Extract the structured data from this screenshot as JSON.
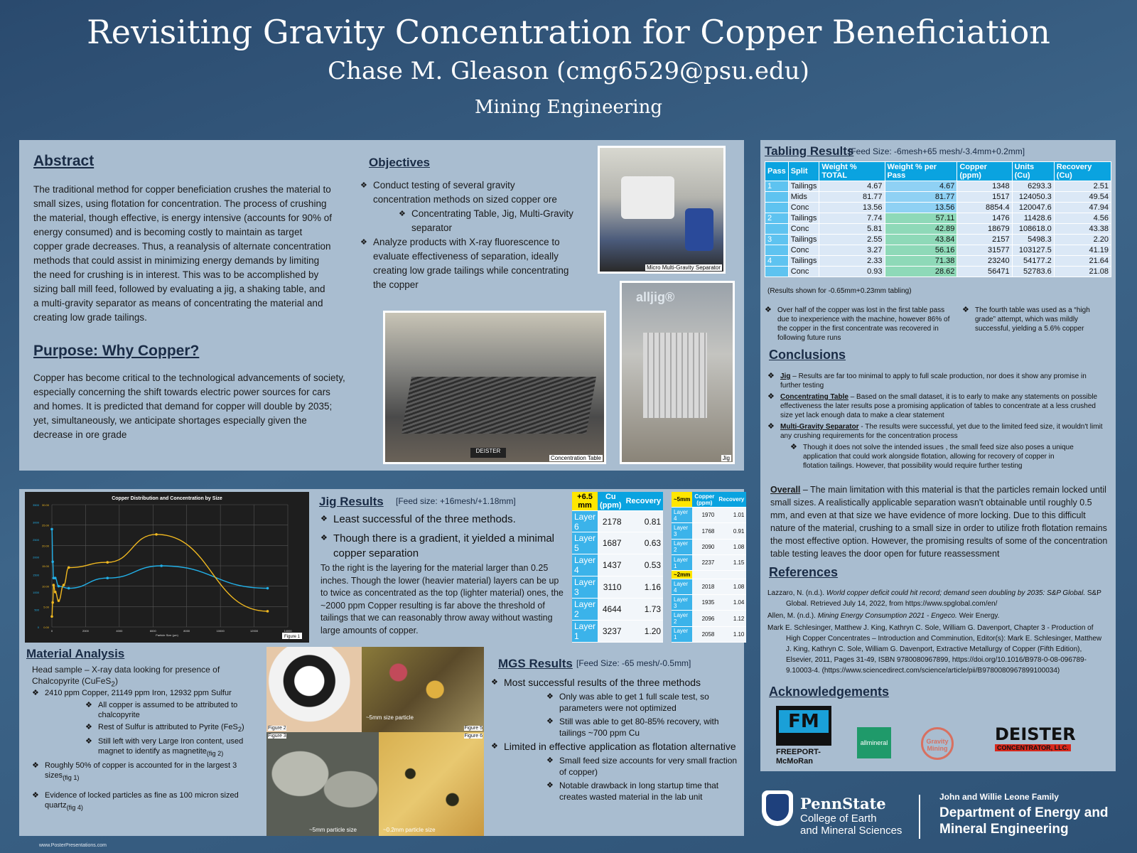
{
  "header": {
    "title": "Revisiting Gravity Concentration for Copper Beneficiation",
    "author": "Chase M. Gleason (cmg6529@psu.edu)",
    "dept": "Mining Engineering"
  },
  "abstract": {
    "heading": "Abstract",
    "text": "The traditional method for copper beneficiation crushes the material to small sizes, using flotation for concentration. The process of crushing the material, though effective, is energy intensive (accounts for 90% of energy consumed) and is becoming costly to maintain as target copper grade decreases. Thus, a reanalysis of alternate concentration methods that could assist in minimizing energy demands by limiting the need for crushing is in interest. This was to be accomplished by sizing ball mill feed, followed by evaluating a jig, a shaking table, and a multi-gravity separator as means of concentrating the material and creating low grade tailings."
  },
  "purpose": {
    "heading": "Purpose: Why Copper?",
    "text": "Copper has become critical to the technological advancements of society, especially concerning the shift towards electric power sources for cars and homes. It is predicted that demand for copper will double by 2035; yet, simultaneously, we anticipate shortages especially given the decrease in ore grade"
  },
  "objectives": {
    "heading": "Objectives",
    "i1": "Conduct testing of several gravity concentration methods on sized copper ore",
    "i1a": "Concentrating Table, Jig, Multi-Gravity separator",
    "i2": "Analyze products with X-ray fluorescence to evaluate effectiveness of separation, ideally creating low grade tailings while concentrating the copper"
  },
  "photos": {
    "mgs": "Micro Multi-Gravity Separator",
    "table": "Concentration Table",
    "jig": "Jig",
    "fig2": "Figure 2",
    "fig3": "Figure 3",
    "fig5": "Figure 5",
    "fig6": "Figure 6",
    "p5": "~5mm size particle",
    "p3": "~5mm particle size",
    "p6": "~0.2mm particle size",
    "deister": "DEISTER",
    "alljig": "alljig®"
  },
  "tabling": {
    "heading": "Tabling Results",
    "feed": "[Feed Size: -6mesh+65 mesh/-3.4mm+0.2mm]",
    "columns": [
      "Pass",
      "Split",
      "Weight % TOTAL",
      "Weight % per Pass",
      "Copper (ppm)",
      "Units (Cu)",
      "Recovery (Cu)"
    ],
    "rows": [
      [
        "1",
        "Tailings",
        "4.67",
        "4.67",
        "1348",
        "6293.3",
        "2.51"
      ],
      [
        "",
        "Mids",
        "81.77",
        "81.77",
        "1517",
        "124050.3",
        "49.54"
      ],
      [
        "",
        "Conc",
        "13.56",
        "13.56",
        "8854.4",
        "120047.6",
        "47.94"
      ],
      [
        "2",
        "Tailings",
        "7.74",
        "57.11",
        "1476",
        "11428.6",
        "4.56"
      ],
      [
        "",
        "Conc",
        "5.81",
        "42.89",
        "18679",
        "108618.0",
        "43.38"
      ],
      [
        "3",
        "Tailings",
        "2.55",
        "43.84",
        "2157",
        "5498.3",
        "2.20"
      ],
      [
        "",
        "Conc",
        "3.27",
        "56.16",
        "31577",
        "103127.5",
        "41.19"
      ],
      [
        "4",
        "Tailings",
        "2.33",
        "71.38",
        "23240",
        "54177.2",
        "21.64"
      ],
      [
        "",
        "Conc",
        "0.93",
        "28.62",
        "56471",
        "52783.6",
        "21.08"
      ]
    ],
    "note": "(Results shown for -0.65mm+0.23mm tabling)",
    "b1": "Over half of the copper was lost in the first table pass due to inexperience with the machine, however 86% of the copper in the first concentrate was recovered in following future runs",
    "b2": "The fourth table was used as a “high grade” attempt, which was mildly successful, yielding a 5.6% copper"
  },
  "conclusions": {
    "heading": "Conclusions",
    "jigL": "Jig",
    "jig": " – Results are far too minimal to apply to full scale production, nor does it show any promise in further testing",
    "ctL": "Concentrating Table",
    "ct": " – Based on the small dataset, it is to early to make any statements on possible effectiveness the later results pose a promising application of tables to concentrate at a less crushed size yet lack enough data to make a clear statement",
    "mgsL": "Multi-Gravity Separator",
    "mgs": " - The results were successful, yet due to the limited feed size, it wouldn't limit any crushing requirements for the concentration process",
    "sub": "Though it does not solve the intended issues , the small feed size also poses a unique application that could work alongside flotation, allowing for recovery of copper in flotation tailings. However, that possibility would require further testing",
    "overallL": "Overall",
    "overall": " – The main limitation with this material is that the particles remain locked until small sizes. A realistically applicable separation wasn't obtainable until roughly 0.5 mm, and even at that size we have evidence of more locking. Due to this difficult nature of the material, crushing to a small size in order to utilize froth flotation remains the most effective option. However, the promising results of some of the concentration table testing leaves the door open for future reassessment"
  },
  "references": {
    "heading": "References",
    "r1a": "Lazzaro, N. (n.d.). ",
    "r1i": "World copper deficit could hit record; demand seen doubling by 2035: S&P Global.",
    "r1b": " S&P Global. Retrieved July 14, 2022, from https://www.spglobal.com/en/",
    "r2a": "Allen, M. (n.d.). ",
    "r2i": "Mining Energy Consumption 2021 - Engeco.",
    "r2b": " Weir Energy.",
    "r3": "Mark E. Schlesinger, Matthew J. King, Kathryn C. Sole, William G. Davenport, Chapter 3 - Production of High Copper Concentrates – Introduction and Comminution, Editor(s): Mark E. Schlesinger, Matthew J. King, Kathryn C. Sole, William G. Davenport, Extractive Metallurgy of Copper (Fifth Edition), Elsevier, 2011, Pages 31-49, ISBN 9780080967899, https://doi.org/10.1016/B978-0-08-096789-9.10003-4. (https://www.sciencedirect.com/science/article/pii/B9780080967899100034)"
  },
  "ack": {
    "heading": "Acknowledgements",
    "fm1": "FREEPORT-",
    "fm2": "McMoRan",
    "allmineral": "allmineral",
    "gravity": "Gravity Mining",
    "deister": "DEISTER",
    "deister2": "CONCENTRATOR, LLC."
  },
  "psu": {
    "name": "PennState",
    "college1": "College of Earth",
    "college2": "and Mineral Sciences",
    "fam": "John and Willie Leone Family",
    "dept1": "Department of Energy and",
    "dept2": "Mineral Engineering"
  },
  "jig": {
    "heading": "Jig Results",
    "feed": "[Feed size: +16mesh/+1.18mm]",
    "b1": "Least successful of the three methods.",
    "b2": "Though there is a gradient, it yielded a minimal copper separation",
    "text": "To the right is the layering for the material larger than 0.25 inches. Though the lower (heavier material) layers can be up to twice as concentrated as the top (lighter material) ones, the ~2000 ppm Copper resulting is far above the threshold of tailings that we can reasonably throw away without wasting large amounts of copper.",
    "t1head": [
      "+6.5 mm",
      "Cu (ppm)",
      "Recovery"
    ],
    "t1": [
      [
        "Layer 6",
        "2178",
        "0.81"
      ],
      [
        "Layer 5",
        "1687",
        "0.63"
      ],
      [
        "Layer 4",
        "1437",
        "0.53"
      ],
      [
        "Layer 3",
        "3110",
        "1.16"
      ],
      [
        "Layer 2",
        "4644",
        "1.73"
      ],
      [
        "Layer 1",
        "3237",
        "1.20"
      ]
    ],
    "t2head": [
      "~5mm",
      "Copper (ppm)",
      "Recovery"
    ],
    "t2a": [
      [
        "Layer 4",
        "1970",
        "1.01"
      ],
      [
        "Layer 3",
        "1768",
        "0.91"
      ],
      [
        "Layer 2",
        "2090",
        "1.08"
      ],
      [
        "Layer 1",
        "2237",
        "1.15"
      ]
    ],
    "t2mid": "~2mm",
    "t2b": [
      [
        "Layer 4",
        "2018",
        "1.08"
      ],
      [
        "Layer 3",
        "1935",
        "1.04"
      ],
      [
        "Layer 2",
        "2096",
        "1.12"
      ],
      [
        "Layer 1",
        "2058",
        "1.10"
      ]
    ]
  },
  "material": {
    "heading": "Material Analysis",
    "l1": "Head sample – X-ray data looking for presence of Chalcopyrite (CuFeS",
    "l1s": "2",
    "l1e": ")",
    "b1": "2410 ppm Copper, 21149 ppm Iron, 12932 ppm Sulfur",
    "s1": "All copper is assumed to be attributed to chalcopyrite",
    "s2": "Rest of Sulfur is attributed to Pyrite (FeS",
    "s2s": "2",
    "s2e": ")",
    "s3": "Still left with very Large Iron content, used magnet to identify as magnetite",
    "s3s": "(fig 2)",
    "b2": "Roughly 50% of copper is accounted for in the largest 3 sizes",
    "b2s": "(fig 1)",
    "b3": "Evidence of locked particles as fine as 100 micron sized quartz",
    "b3s": "(fig 4)"
  },
  "mgs": {
    "heading": "MGS Results",
    "feed": "[Feed Size: -65 mesh/-0.5mm]",
    "b1": "Most successful results of the three methods",
    "s1": "Only was able to get 1 full scale test, so parameters were not optimized",
    "s2": "Still was able to get 80-85% recovery, with tailings ~700 ppm Cu",
    "b2": "Limited in effective application as flotation alternative",
    "s3": "Small feed size accounts for very small fraction of copper)",
    "s4": "Notable drawback in long startup time that creates wasted material in the lab unit"
  },
  "footer": "www.PosterPresentations.com",
  "colors": {
    "panel": "#a9bdd0",
    "tableHead": "#0aa3e0",
    "cyanLine": "#22b0e8",
    "goldLine": "#f0b820"
  },
  "chart_data": {
    "type": "line",
    "title": "Copper Distribution and Concentration by Size",
    "xlabel": "Particle Size (µm)",
    "ylabel": "",
    "figure": "Figure 1",
    "x_ticks": [
      "0",
      "2000",
      "4000",
      "6000",
      "8000",
      "10000",
      "12000",
      "14000"
    ],
    "y_ticks": [
      "0.00",
      "5.00",
      "10.00",
      "15.00",
      "20.00",
      "25.00",
      "30.00"
    ],
    "y2_ticks": [
      "0",
      "500",
      "1000",
      "1500",
      "2000",
      "2500",
      "3000",
      "3500"
    ],
    "xlim": [
      0,
      14000
    ],
    "ylim": [
      0,
      30
    ],
    "y2lim": [
      0,
      3500
    ],
    "series": [
      {
        "color": "#22b0e8",
        "axis": "left",
        "x": [
          0,
          50,
          100,
          200,
          400,
          1000,
          3300,
          6500,
          12800
        ],
        "y": [
          24,
          16,
          12,
          12,
          10,
          9.5,
          12,
          15,
          9.5
        ]
      },
      {
        "color": "#f0b820",
        "axis": "right",
        "x": [
          0,
          50,
          100,
          200,
          400,
          700,
          1000,
          3300,
          6200,
          12800
        ],
        "y": [
          300,
          700,
          1200,
          1000,
          750,
          1200,
          1700,
          1850,
          2650,
          450
        ]
      }
    ]
  }
}
